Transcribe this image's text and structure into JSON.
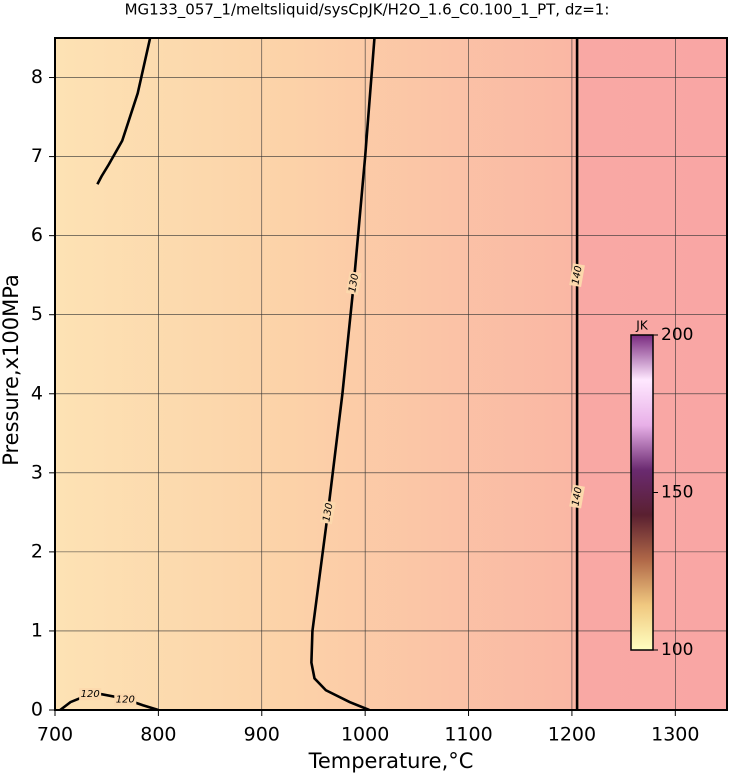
{
  "chart_data": {
    "type": "contour",
    "title": "MG133_057_1/meltsliquid/sysCpJK/H2O_1.6_C0.100_1_PT, dz=1:",
    "xlabel": "Temperature,°C",
    "ylabel": "Pressure,x100MPa",
    "xlim": [
      700,
      1350
    ],
    "ylim": [
      0,
      8.5
    ],
    "xticks": [
      700,
      800,
      900,
      1000,
      1100,
      1200,
      1300
    ],
    "yticks": [
      0,
      1,
      2,
      3,
      4,
      5,
      6,
      7,
      8
    ],
    "grid": true,
    "contours": [
      {
        "level": 130,
        "x": [
          1009,
          1000,
          989,
          978,
          964,
          955,
          949,
          948,
          951,
          962,
          985,
          1004
        ],
        "y": [
          8.5,
          7,
          5.4,
          4,
          2.5,
          1.6,
          1,
          0.6,
          0.4,
          0.25,
          0.1,
          0
        ]
      },
      {
        "level": 130,
        "x": [
          792,
          780,
          765,
          752,
          745,
          741
        ],
        "y": [
          8.5,
          7.8,
          7.2,
          6.9,
          6.75,
          6.65
        ]
      },
      {
        "level": 140,
        "x": [
          1205,
          1205
        ],
        "y": [
          0,
          8.5
        ]
      },
      {
        "level": 120,
        "x": [
          705,
          715,
          730,
          745,
          765,
          785,
          800
        ],
        "y": [
          0,
          0.1,
          0.18,
          0.2,
          0.15,
          0.06,
          0
        ]
      }
    ],
    "contour_labels": [
      {
        "value": 130,
        "x": 989,
        "y": 5.4
      },
      {
        "value": 130,
        "x": 964,
        "y": 2.5
      },
      {
        "value": 140,
        "x": 1205,
        "y": 5.5
      },
      {
        "value": 140,
        "x": 1205,
        "y": 2.7
      },
      {
        "value": 120,
        "x": 734,
        "y": 0.2
      },
      {
        "value": 120,
        "x": 768,
        "y": 0.13
      }
    ],
    "colorbar": {
      "label": "JK",
      "lim": [
        100,
        200
      ],
      "ticks": [
        100,
        150,
        200
      ],
      "colors": [
        "#ffffc0",
        "#f0c880",
        "#b06848",
        "#5a2030",
        "#6a2a70",
        "#e8b0e8",
        "#ffe8ff",
        "#7a2a80"
      ]
    }
  }
}
